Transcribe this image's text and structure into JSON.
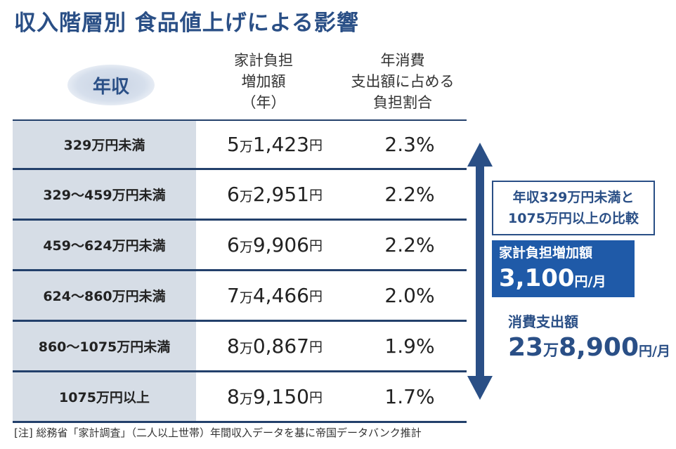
{
  "title": "収入階層別 食品値上げによる影響",
  "header": {
    "income_label": "年収",
    "cost_header": [
      "家計負担",
      "増加額",
      "（年）"
    ],
    "ratio_header": [
      "年消費",
      "支出額に占める",
      "負担割合"
    ]
  },
  "chart_data": {
    "type": "table",
    "title": "収入階層別 食品値上げによる影響",
    "columns": [
      "年収",
      "家計負担増加額（年）",
      "年消費支出額に占める負担割合"
    ],
    "rows": [
      {
        "income": "329万円未満",
        "cost_man": "5万",
        "cost_rest": "1,423",
        "cost_unit": "円",
        "ratio": "2.3%"
      },
      {
        "income": "329～459万円未満",
        "cost_man": "6万",
        "cost_rest": "2,951",
        "cost_unit": "円",
        "ratio": "2.2%"
      },
      {
        "income": "459～624万円未満",
        "cost_man": "6万",
        "cost_rest": "9,906",
        "cost_unit": "円",
        "ratio": "2.2%"
      },
      {
        "income": "624～860万円未満",
        "cost_man": "7万",
        "cost_rest": "4,466",
        "cost_unit": "円",
        "ratio": "2.0%"
      },
      {
        "income": "860～1075万円未満",
        "cost_man": "8万",
        "cost_rest": "0,867",
        "cost_unit": "円",
        "ratio": "1.9%"
      },
      {
        "income": "1075万円以上",
        "cost_man": "8万",
        "cost_rest": "9,150",
        "cost_unit": "円",
        "ratio": "1.7%"
      }
    ]
  },
  "comparison": {
    "box_lines": [
      "年収329万円未満と",
      "1075万円以上の比較"
    ],
    "burden_title": "家計負担増加額",
    "burden_value": "3,100",
    "burden_unit": "円/月",
    "spend_title": "消費支出額",
    "spend_value_man": "23",
    "spend_man_unit": "万",
    "spend_value_rest": "8,900",
    "spend_unit": "円/月"
  },
  "note": "[注] 総務省「家計調査」（二人以上世帯）年間収入データを基に帝国データバンク推計",
  "colors": {
    "title": "#2a4f86",
    "label_bg": "#d6dde6",
    "rule": "#23406b",
    "arrow": "#2a4f86",
    "burden_box": "#1f5aa8"
  }
}
